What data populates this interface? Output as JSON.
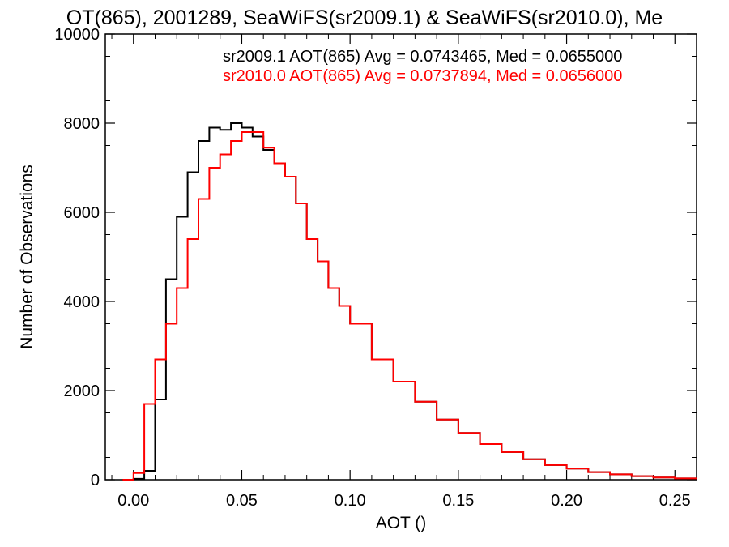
{
  "chart_data": {
    "type": "line",
    "title": "OT(865), 2001289, SeaWiFS(sr2009.1) & SeaWiFS(sr2010.0), Me",
    "xlabel": "AOT ()",
    "ylabel": "Number of Observations",
    "xlim": [
      -0.013,
      0.26
    ],
    "ylim": [
      0,
      10000
    ],
    "xticks": [
      0.0,
      0.05,
      0.1,
      0.15,
      0.2,
      0.25
    ],
    "xtick_labels": [
      "0.00",
      "0.05",
      "0.10",
      "0.15",
      "0.20",
      "0.25"
    ],
    "yticks": [
      0,
      2000,
      4000,
      6000,
      8000,
      10000
    ],
    "ytick_labels": [
      "0",
      "2000",
      "4000",
      "6000",
      "8000",
      "10000"
    ],
    "grid": false,
    "legend_position": "top-right",
    "annotations": [
      {
        "text": "sr2009.1 AOT(865) Avg = 0.0743465, Med = 0.0655000",
        "color": "#000000"
      },
      {
        "text": "sr2010.0 AOT(865) Avg = 0.0737894, Med = 0.0656000",
        "color": "#ff0000"
      }
    ],
    "series": [
      {
        "color": "#000000",
        "x": [
          -0.005,
          0.0,
          0.005,
          0.01,
          0.015,
          0.02,
          0.025,
          0.03,
          0.035,
          0.04,
          0.045,
          0.05,
          0.055,
          0.06,
          0.065,
          0.07,
          0.075,
          0.08,
          0.085,
          0.09,
          0.095,
          0.1,
          0.11,
          0.12,
          0.13,
          0.14,
          0.15,
          0.16,
          0.17,
          0.18,
          0.19,
          0.2,
          0.21,
          0.22,
          0.23,
          0.24,
          0.25,
          0.26
        ],
        "y": [
          0,
          20,
          200,
          1800,
          4500,
          5900,
          6900,
          7600,
          7900,
          7850,
          8000,
          7900,
          7700,
          7400,
          7100,
          6800,
          6200,
          5400,
          4900,
          4300,
          3900,
          3500,
          2700,
          2200,
          1750,
          1350,
          1050,
          800,
          620,
          460,
          330,
          250,
          170,
          120,
          80,
          50,
          30,
          20
        ]
      },
      {
        "color": "#ff0000",
        "x": [
          -0.005,
          0.0,
          0.005,
          0.01,
          0.015,
          0.02,
          0.025,
          0.03,
          0.035,
          0.04,
          0.045,
          0.05,
          0.055,
          0.06,
          0.065,
          0.07,
          0.075,
          0.08,
          0.085,
          0.09,
          0.095,
          0.1,
          0.11,
          0.12,
          0.13,
          0.14,
          0.15,
          0.16,
          0.17,
          0.18,
          0.19,
          0.2,
          0.21,
          0.22,
          0.23,
          0.24,
          0.25,
          0.26
        ],
        "y": [
          0,
          150,
          1700,
          2700,
          3500,
          4300,
          5400,
          6300,
          7000,
          7300,
          7600,
          7800,
          7800,
          7450,
          7100,
          6800,
          6200,
          5400,
          4900,
          4300,
          3900,
          3500,
          2700,
          2200,
          1750,
          1350,
          1050,
          800,
          620,
          460,
          330,
          250,
          170,
          120,
          80,
          50,
          30,
          20
        ]
      }
    ]
  }
}
